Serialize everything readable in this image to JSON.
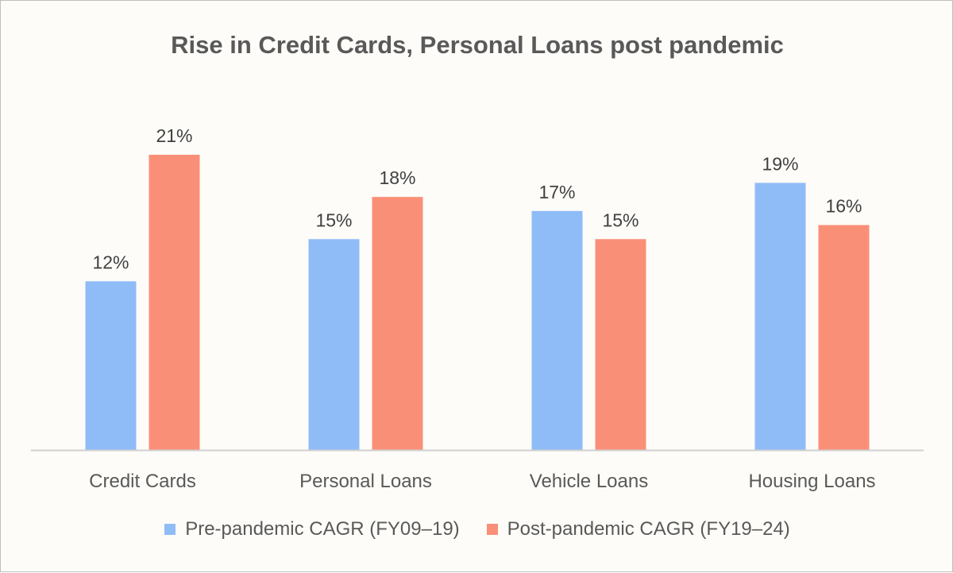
{
  "chart_data": {
    "type": "bar",
    "title": "Rise in Credit Cards, Personal Loans post pandemic",
    "categories": [
      "Credit Cards",
      "Personal Loans",
      "Vehicle Loans",
      "Housing Loans"
    ],
    "series": [
      {
        "name": "Pre-pandemic CAGR (FY09–19)",
        "values": [
          12,
          15,
          17,
          19
        ],
        "labels": [
          "12%",
          "15%",
          "17%",
          "19%"
        ],
        "color": "#8fbcf7"
      },
      {
        "name": "Post-pandemic CAGR (FY19–24)",
        "values": [
          21,
          18,
          15,
          16
        ],
        "labels": [
          "21%",
          "18%",
          "15%",
          "16%"
        ],
        "color": "#fa8f78"
      }
    ],
    "ylim": [
      0,
      24
    ],
    "grid": false,
    "legend": "bottom"
  }
}
